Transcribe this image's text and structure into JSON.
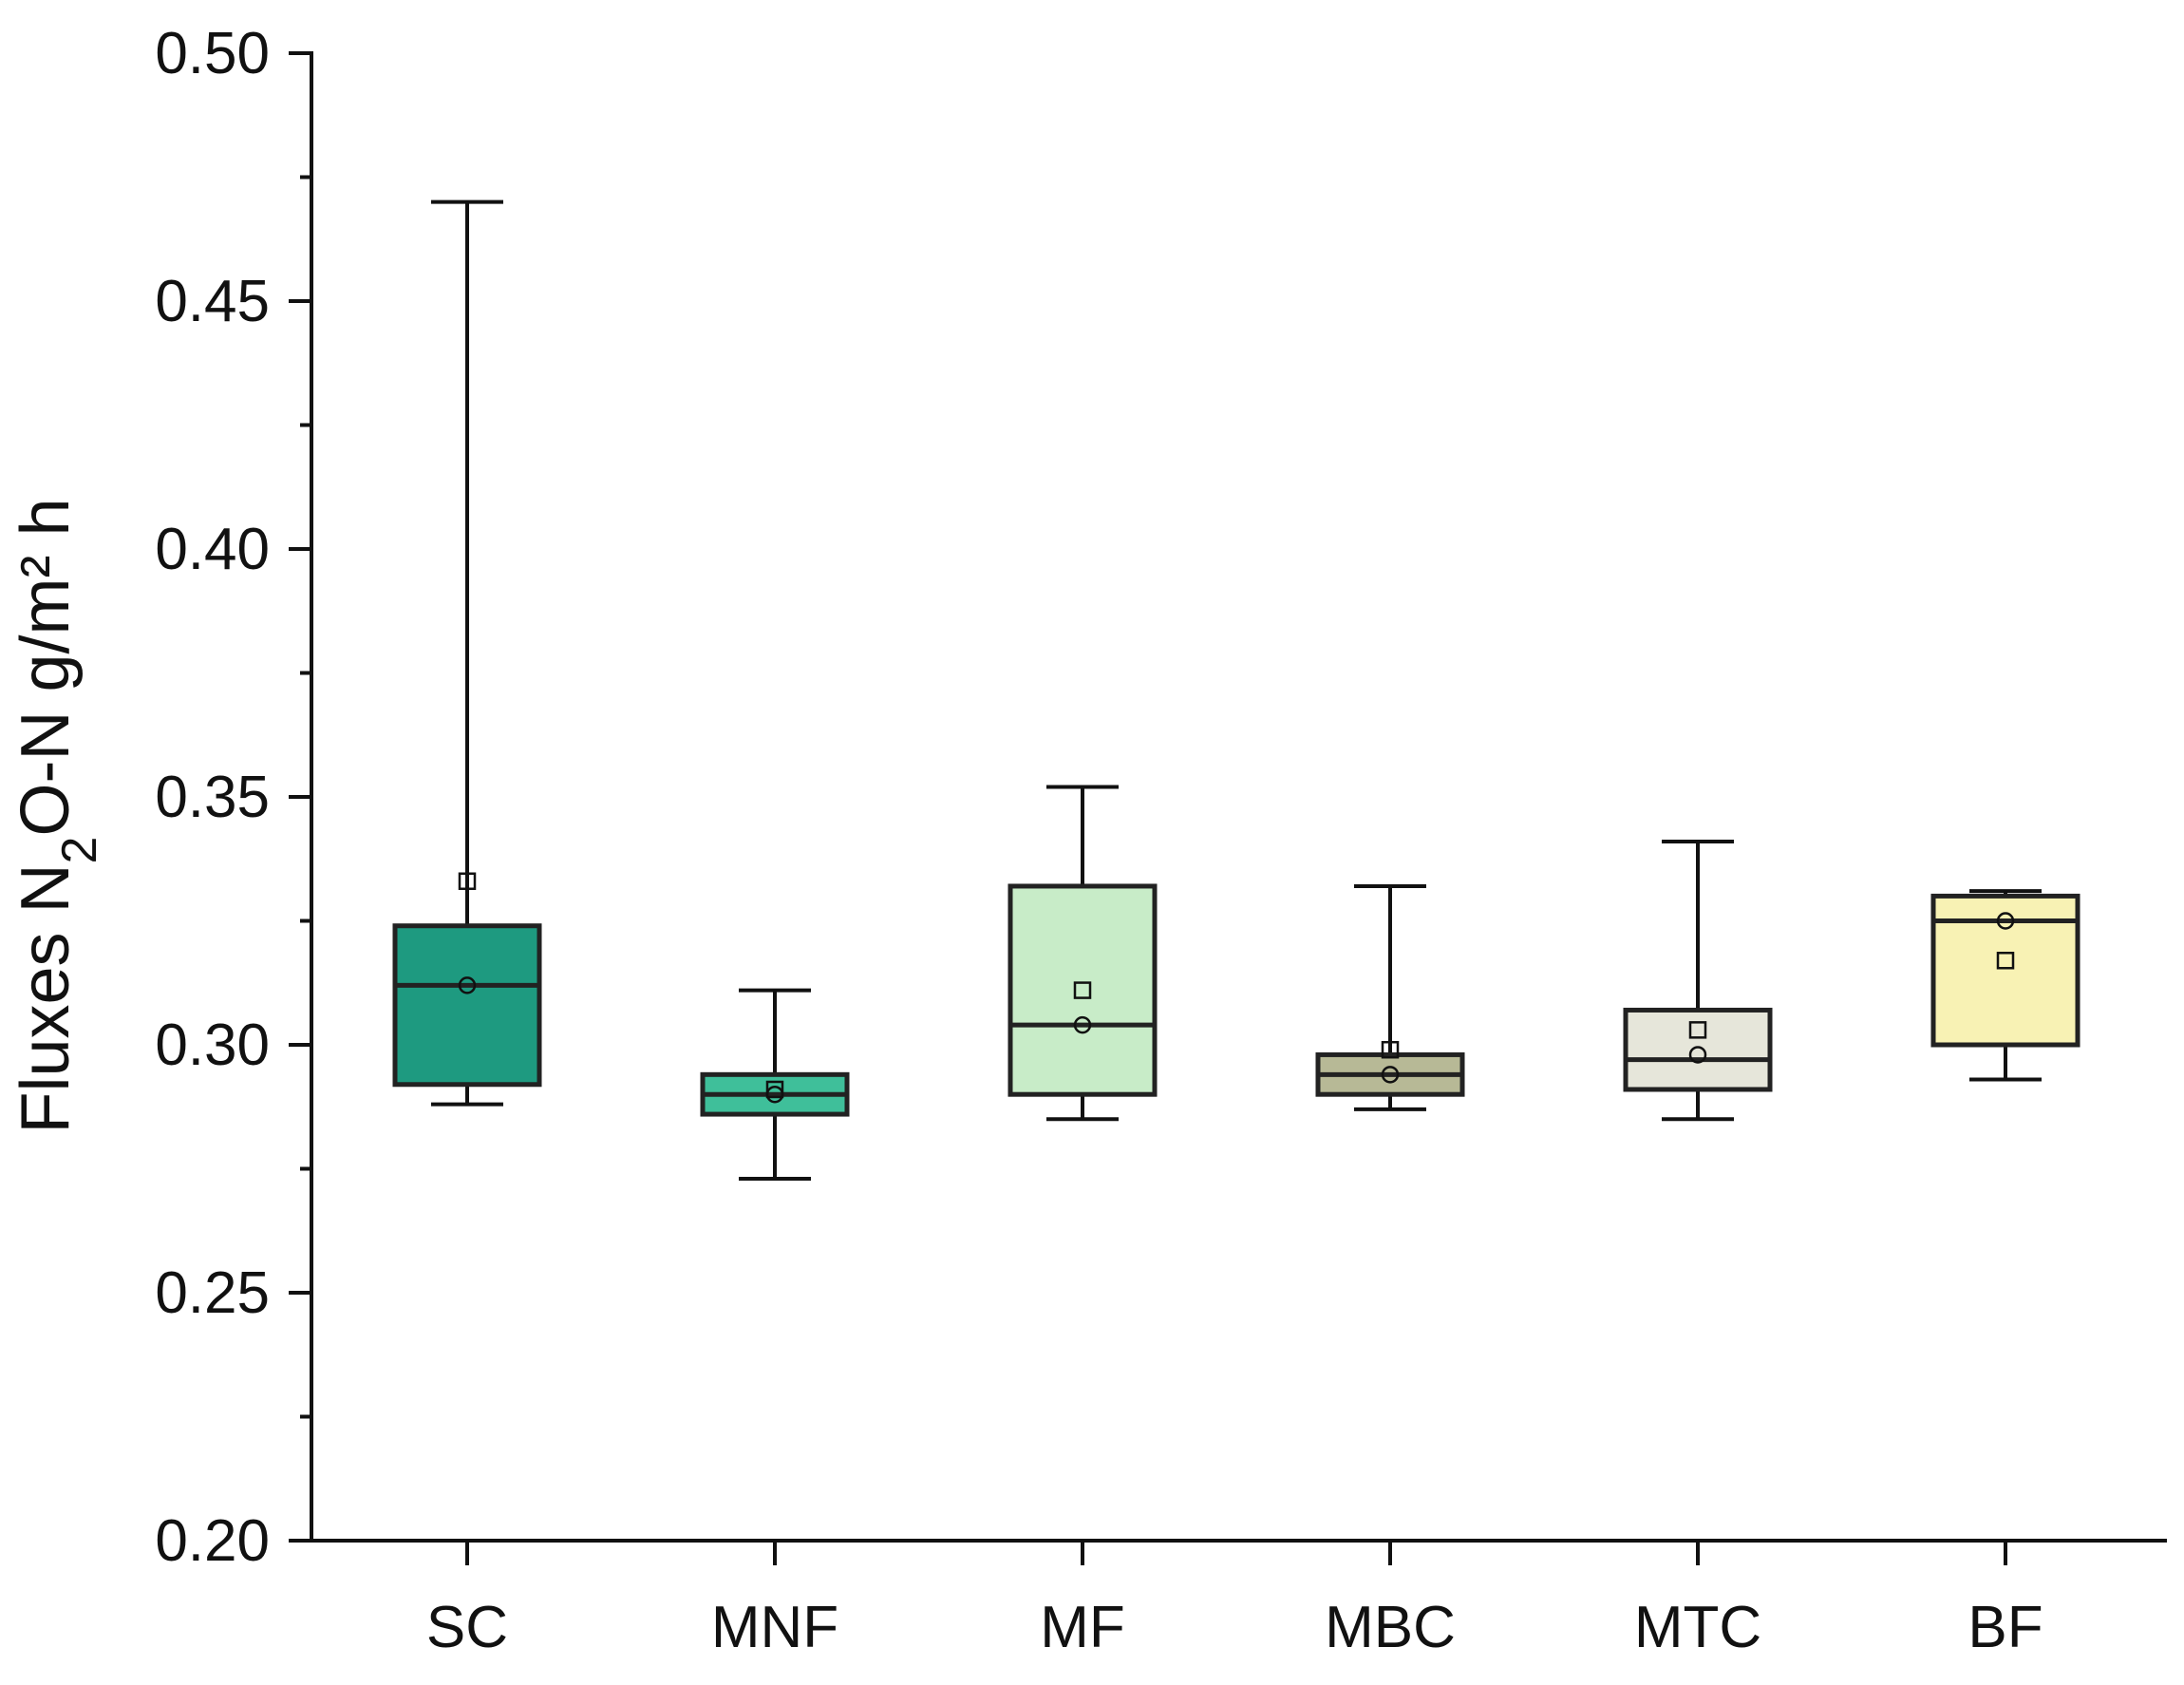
{
  "chart_data": {
    "type": "box",
    "title": "",
    "xlabel": "",
    "ylabel": {
      "prefix": "Fluxes N",
      "sub": "2",
      "suffix": "O-N g/m² h"
    },
    "ylim": [
      0.2,
      0.5
    ],
    "yticks": [
      "0.20",
      "0.25",
      "0.30",
      "0.35",
      "0.40",
      "0.45",
      "0.50"
    ],
    "grid": false,
    "categories": [
      "SC",
      "MNF",
      "MF",
      "MBC",
      "MTC",
      "BF"
    ],
    "series": [
      {
        "name": "SC",
        "color": "#1e9a80",
        "whisker_low": 0.288,
        "q1": 0.292,
        "median": 0.312,
        "q3": 0.324,
        "whisker_high": 0.47,
        "square_marker": 0.333,
        "circle_marker": 0.312
      },
      {
        "name": "MNF",
        "color": "#3fbf9a",
        "whisker_low": 0.273,
        "q1": 0.286,
        "median": 0.29,
        "q3": 0.294,
        "whisker_high": 0.311,
        "square_marker": 0.291,
        "circle_marker": 0.29
      },
      {
        "name": "MF",
        "color": "#c8ecc8",
        "whisker_low": 0.285,
        "q1": 0.29,
        "median": 0.304,
        "q3": 0.332,
        "whisker_high": 0.352,
        "square_marker": 0.311,
        "circle_marker": 0.304
      },
      {
        "name": "MBC",
        "color": "#b7b996",
        "whisker_low": 0.287,
        "q1": 0.29,
        "median": 0.294,
        "q3": 0.298,
        "whisker_high": 0.332,
        "square_marker": 0.299,
        "circle_marker": 0.294
      },
      {
        "name": "MTC",
        "color": "#e6e6da",
        "whisker_low": 0.285,
        "q1": 0.291,
        "median": 0.297,
        "q3": 0.307,
        "whisker_high": 0.341,
        "square_marker": 0.303,
        "circle_marker": 0.298
      },
      {
        "name": "BF",
        "color": "#f8f2b4",
        "whisker_low": 0.293,
        "q1": 0.3,
        "median": 0.325,
        "q3": 0.33,
        "whisker_high": 0.331,
        "square_marker": 0.317,
        "circle_marker": 0.325
      }
    ]
  }
}
